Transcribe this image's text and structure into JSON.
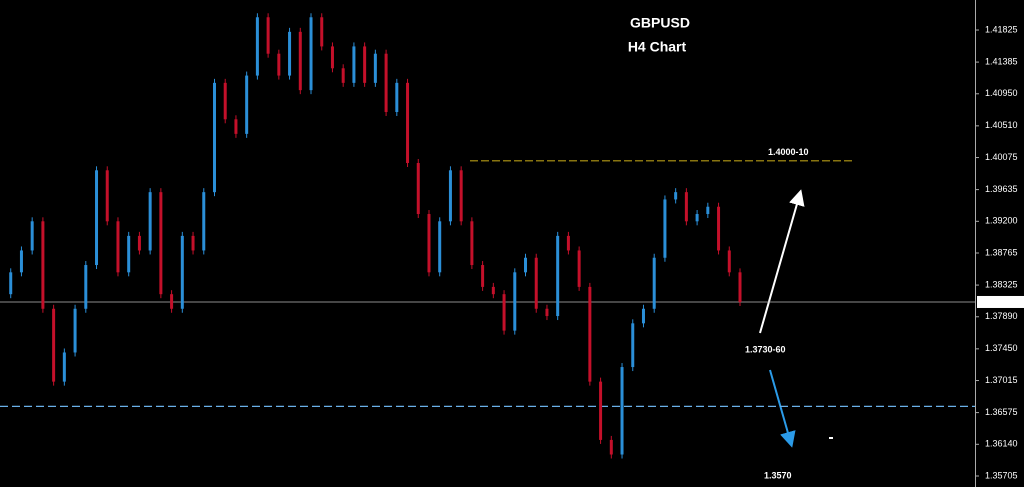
{
  "chart_data": {
    "type": "candlestick",
    "title": "GBPUSD",
    "subtitle": "H4 Chart",
    "up_color": "#2b8fd8",
    "down_color": "#c4102a",
    "values": [
      1.382,
      1.385,
      1.388,
      1.392,
      1.38,
      1.37,
      1.374,
      1.38,
      1.386,
      1.399,
      1.392,
      1.385,
      1.39,
      1.388,
      1.396,
      1.382,
      1.38,
      1.39,
      1.388,
      1.396,
      1.411,
      1.406,
      1.404,
      1.412,
      1.42,
      1.415,
      1.412,
      1.418,
      1.41,
      1.42,
      1.416,
      1.413,
      1.411,
      1.416,
      1.411,
      1.415,
      1.407,
      1.411,
      1.4,
      1.393,
      1.385,
      1.392,
      1.399,
      1.392,
      1.386,
      1.383,
      1.382,
      1.377,
      1.385,
      1.387,
      1.38,
      1.379,
      1.39,
      1.388,
      1.383,
      1.37,
      1.362,
      1.36,
      1.372,
      1.378,
      1.38,
      1.387,
      1.395,
      1.396,
      1.392,
      1.393,
      1.394,
      1.388,
      1.385,
      1.38093
    ],
    "ylim": [
      1.35554,
      1.42237
    ],
    "yticks": [
      1.41825,
      1.41385,
      {
        "value": 1.4095,
        "label": "1.40950"
      },
      {
        "value": 1.4051,
        "label": "1.40510"
      },
      1.40075,
      1.39635,
      {
        "value": 1.392,
        "label": "1.39200"
      },
      1.38765,
      1.38325,
      {
        "value": 1.3789,
        "label": "1.37890"
      },
      {
        "value": 1.3745,
        "label": "1.37450"
      },
      1.37015,
      1.36575,
      {
        "value": 1.3614,
        "label": "1.36140"
      },
      1.35705
    ],
    "current_price": 1.38093,
    "levels": [
      {
        "value": 1.4003,
        "color": "#b59b16",
        "label": "1.4000-10"
      },
      {
        "value": 1.3666,
        "color": "#6ab0e8"
      }
    ],
    "annotations": [
      {
        "text": "1.3730-60",
        "color": "#f5e400"
      },
      {
        "text": "1.3570",
        "color": "#e0101a"
      }
    ]
  }
}
